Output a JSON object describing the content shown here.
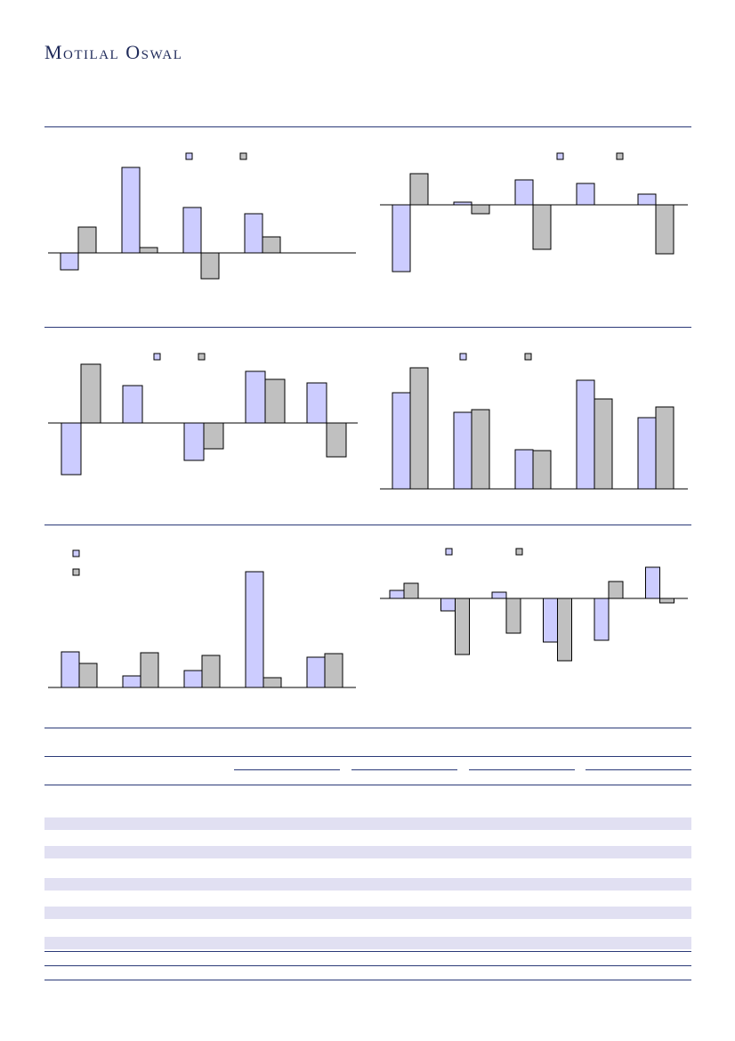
{
  "header": {
    "brand": "Motilal Oswal"
  },
  "colors": {
    "series_a": "#ccccff",
    "series_b": "#c0c0c0",
    "rule": "#2b3a78",
    "band": "#e1e0f2"
  },
  "chart_data": [
    {
      "type": "bar",
      "series": [
        {
          "values": [
            -19,
            96,
            51,
            44
          ]
        },
        {
          "values": [
            29,
            6,
            -29,
            18
          ]
        }
      ]
    },
    {
      "type": "bar",
      "series": [
        {
          "values": [
            -75,
            3,
            28,
            24,
            12
          ]
        },
        {
          "values": [
            35,
            -10,
            -50,
            0,
            -55
          ]
        }
      ]
    },
    {
      "type": "bar",
      "series": [
        {
          "values": [
            -58,
            42,
            -42,
            58,
            45
          ]
        },
        {
          "values": [
            66,
            0,
            -29,
            49,
            -38
          ]
        }
      ]
    },
    {
      "type": "bar",
      "series": [
        {
          "values": [
            108,
            86,
            44,
            122,
            80
          ]
        },
        {
          "values": [
            136,
            89,
            43,
            101,
            92
          ]
        }
      ]
    },
    {
      "type": "bar",
      "series": [
        {
          "values": [
            40,
            13,
            19,
            130,
            34
          ]
        },
        {
          "values": [
            27,
            39,
            36,
            11,
            38
          ]
        }
      ]
    },
    {
      "type": "bar",
      "series": [
        {
          "values": [
            9,
            -14,
            7,
            -49,
            -47,
            35
          ]
        },
        {
          "values": [
            17,
            -63,
            -39,
            -70,
            19,
            -5
          ]
        }
      ]
    }
  ]
}
